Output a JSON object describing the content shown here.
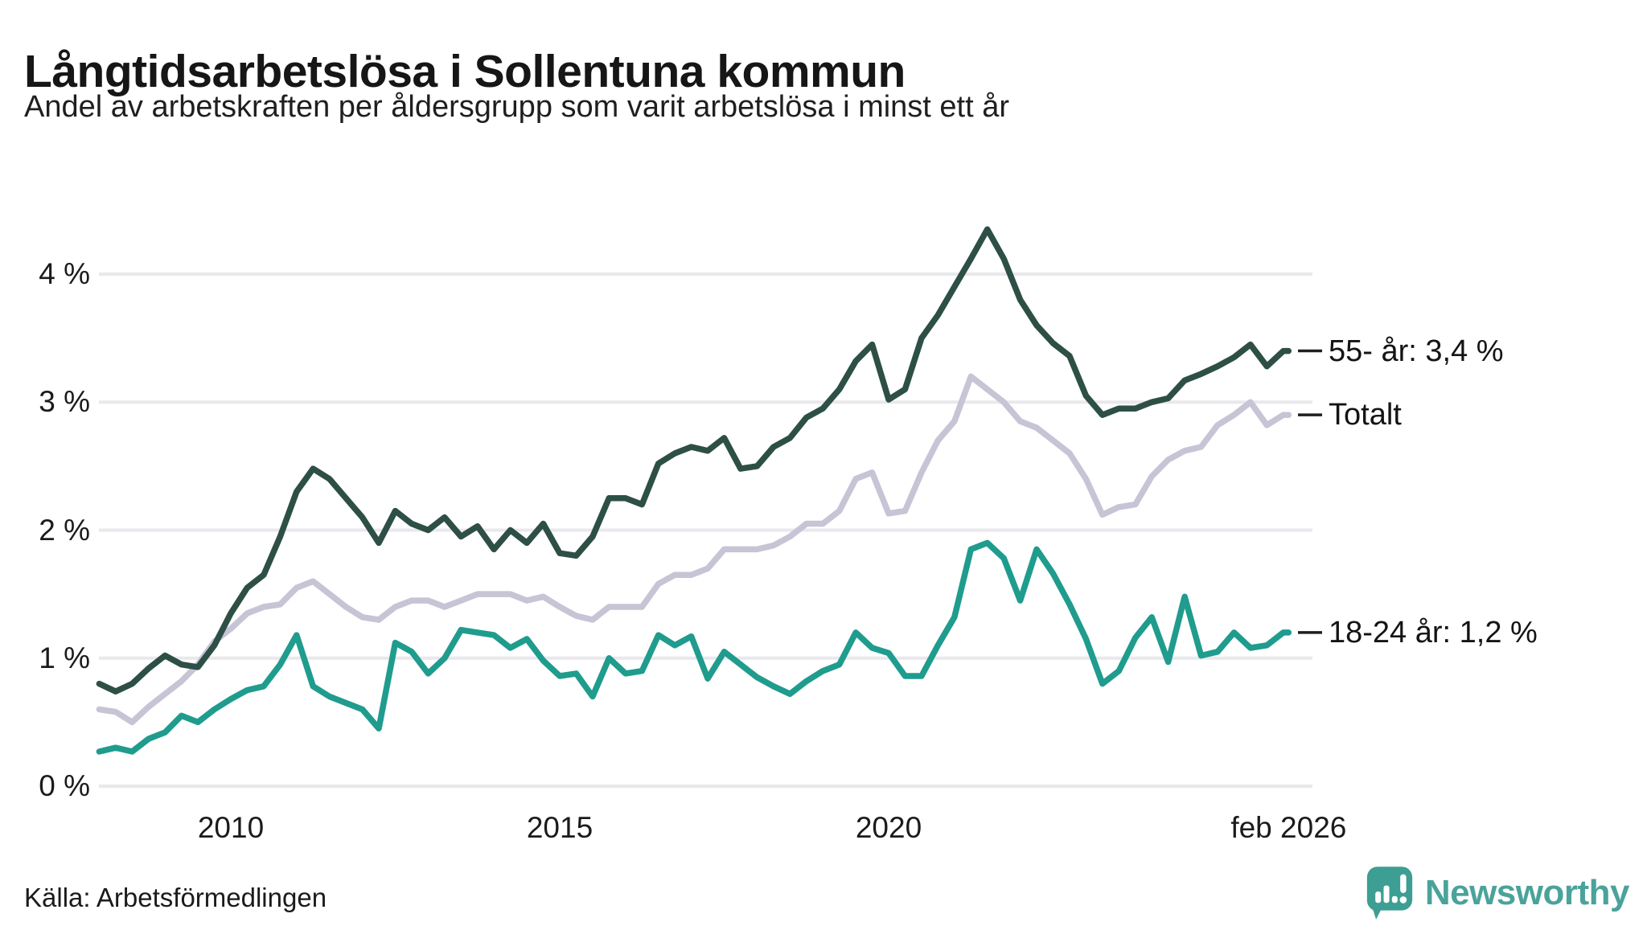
{
  "header": {
    "title": "Långtidsarbetslösa i Sollentuna kommun",
    "subtitle": "Andel av arbetskraften per åldersgrupp som varit arbetslösa i minst ett år"
  },
  "footer": {
    "source": "Källa: Arbetsförmedlingen",
    "brand": "Newsworthy"
  },
  "colors": {
    "series_55": "#2d4f46",
    "series_total": "#c6c4d5",
    "series_18_24": "#1f9c8d",
    "gridline": "#e8e8ed",
    "label_tick": "#1f1f1f",
    "brand_teal": "#3d9e93",
    "text": "#1b1b1b"
  },
  "chart_data": {
    "type": "line",
    "title": "Långtidsarbetslösa i Sollentuna kommun",
    "subtitle": "Andel av arbetskraften per åldersgrupp som varit arbetslösa i minst ett år",
    "xlabel": "",
    "ylabel": "",
    "grid": true,
    "legend_position": "inline-right",
    "ylim": [
      0,
      4.6
    ],
    "xlim": [
      2008,
      2026.4
    ],
    "y_ticks": [
      {
        "label": "0 %",
        "value": 0
      },
      {
        "label": "1 %",
        "value": 1
      },
      {
        "label": "2 %",
        "value": 2
      },
      {
        "label": "3 %",
        "value": 3
      },
      {
        "label": "4 %",
        "value": 4
      }
    ],
    "x_ticks": [
      {
        "label": "2010",
        "year": 2010
      },
      {
        "label": "2015",
        "year": 2015
      },
      {
        "label": "2020",
        "year": 2020
      },
      {
        "label": "feb 2026",
        "year": 2026.08
      }
    ],
    "x": [
      2008,
      2008.25,
      2008.5,
      2008.75,
      2009,
      2009.25,
      2009.5,
      2009.75,
      2010,
      2010.25,
      2010.5,
      2010.75,
      2011,
      2011.25,
      2011.5,
      2011.75,
      2012,
      2012.25,
      2012.5,
      2012.75,
      2013,
      2013.25,
      2013.5,
      2013.75,
      2014,
      2014.25,
      2014.5,
      2014.75,
      2015,
      2015.25,
      2015.5,
      2015.75,
      2016,
      2016.25,
      2016.5,
      2016.75,
      2017,
      2017.25,
      2017.5,
      2017.75,
      2018,
      2018.25,
      2018.5,
      2018.75,
      2019,
      2019.25,
      2019.5,
      2019.75,
      2020,
      2020.25,
      2020.5,
      2020.75,
      2021,
      2021.25,
      2021.5,
      2021.75,
      2022,
      2022.25,
      2022.5,
      2022.75,
      2023,
      2023.25,
      2023.5,
      2023.75,
      2024,
      2024.25,
      2024.5,
      2024.75,
      2025,
      2025.25,
      2025.5,
      2025.75,
      2026,
      2026.08
    ],
    "series": [
      {
        "name": "Totalt",
        "label": "Totalt",
        "end_value": "2,9 %",
        "color": "#c6c4d5",
        "values": [
          0.6,
          0.58,
          0.5,
          0.62,
          0.72,
          0.82,
          0.95,
          1.13,
          1.23,
          1.35,
          1.4,
          1.42,
          1.55,
          1.6,
          1.5,
          1.4,
          1.32,
          1.3,
          1.4,
          1.45,
          1.45,
          1.4,
          1.45,
          1.5,
          1.5,
          1.5,
          1.45,
          1.48,
          1.4,
          1.33,
          1.3,
          1.4,
          1.4,
          1.4,
          1.58,
          1.65,
          1.65,
          1.7,
          1.85,
          1.85,
          1.85,
          1.88,
          1.95,
          2.05,
          2.05,
          2.15,
          2.4,
          2.45,
          2.13,
          2.15,
          2.45,
          2.7,
          2.85,
          3.2,
          3.1,
          3.0,
          2.85,
          2.8,
          2.7,
          2.6,
          2.4,
          2.12,
          2.18,
          2.2,
          2.42,
          2.55,
          2.62,
          2.65,
          2.82,
          2.9,
          3.0,
          2.82,
          2.9,
          2.9
        ]
      },
      {
        "name": "18-24 år",
        "label": "18-24 år: 1,2 %",
        "end_value": "1,2 %",
        "color": "#1f9c8d",
        "values": [
          0.27,
          0.3,
          0.27,
          0.37,
          0.42,
          0.55,
          0.5,
          0.6,
          0.68,
          0.75,
          0.78,
          0.95,
          1.18,
          0.78,
          0.7,
          0.65,
          0.6,
          0.45,
          1.12,
          1.05,
          0.88,
          1.0,
          1.22,
          1.2,
          1.18,
          1.08,
          1.15,
          0.98,
          0.86,
          0.88,
          0.7,
          1.0,
          0.88,
          0.9,
          1.18,
          1.1,
          1.17,
          0.84,
          1.05,
          0.95,
          0.85,
          0.78,
          0.72,
          0.82,
          0.9,
          0.95,
          1.2,
          1.08,
          1.04,
          0.86,
          0.86,
          1.1,
          1.32,
          1.85,
          1.9,
          1.78,
          1.45,
          1.85,
          1.66,
          1.42,
          1.15,
          0.8,
          0.9,
          1.16,
          1.32,
          0.97,
          1.48,
          1.02,
          1.05,
          1.2,
          1.08,
          1.1,
          1.2,
          1.2
        ]
      },
      {
        "name": "55- år",
        "label": "55- år: 3,4 %",
        "end_value": "3,4 %",
        "color": "#2d4f46",
        "values": [
          0.8,
          0.74,
          0.8,
          0.92,
          1.02,
          0.95,
          0.93,
          1.1,
          1.35,
          1.55,
          1.65,
          1.95,
          2.3,
          2.48,
          2.4,
          2.25,
          2.1,
          1.9,
          2.15,
          2.05,
          2.0,
          2.1,
          1.95,
          2.03,
          1.85,
          2.0,
          1.9,
          2.05,
          1.82,
          1.8,
          1.95,
          2.25,
          2.25,
          2.2,
          2.52,
          2.6,
          2.65,
          2.62,
          2.72,
          2.48,
          2.5,
          2.65,
          2.72,
          2.88,
          2.95,
          3.1,
          3.32,
          3.45,
          3.02,
          3.1,
          3.5,
          3.68,
          3.9,
          4.12,
          4.35,
          4.12,
          3.8,
          3.6,
          3.46,
          3.36,
          3.05,
          2.9,
          2.95,
          2.95,
          3.0,
          3.03,
          3.17,
          3.22,
          3.28,
          3.35,
          3.45,
          3.28,
          3.4,
          3.4
        ]
      }
    ]
  }
}
